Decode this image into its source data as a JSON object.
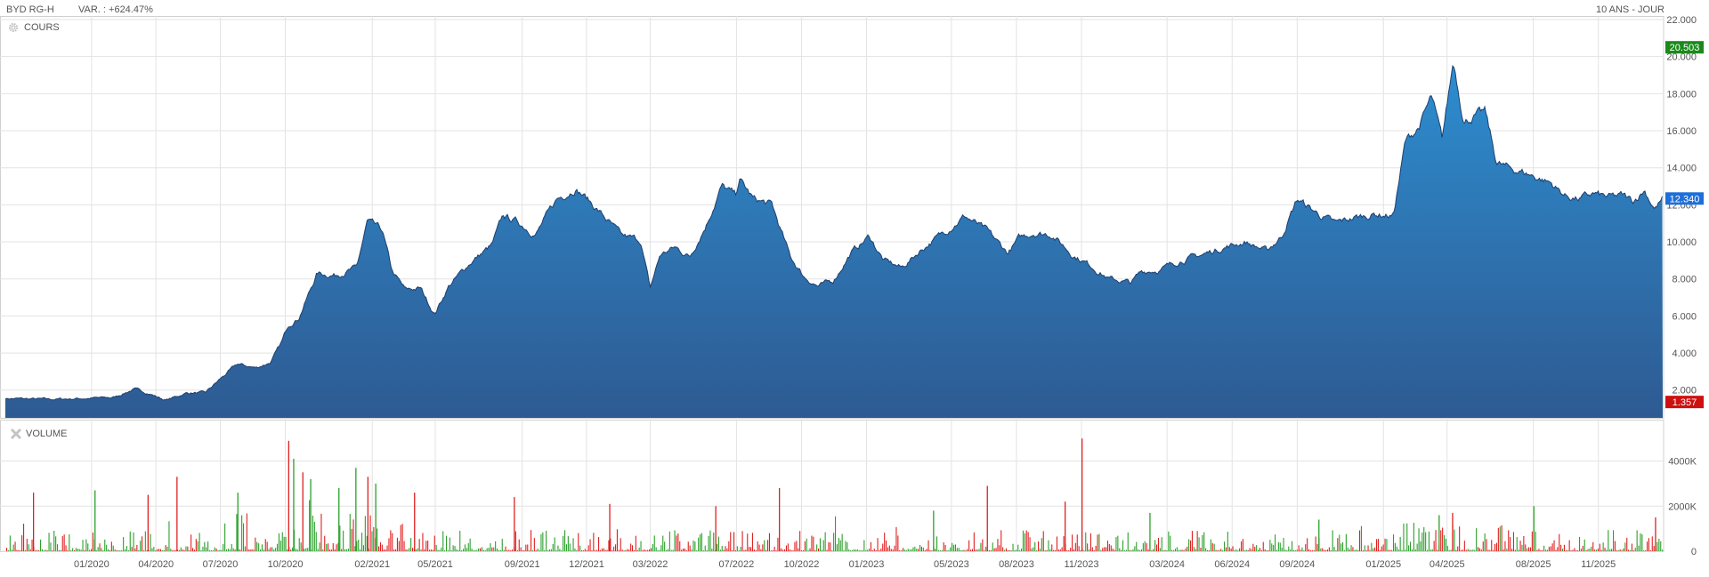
{
  "header": {
    "ticker": "BYD RG-H",
    "variation": "VAR. : +624.47%",
    "period": "10 ANS - JOUR"
  },
  "panels": {
    "price_title": "COURS",
    "price_icon": "gear-icon",
    "volume_title": "VOLUME",
    "volume_icon": "close-icon"
  },
  "colors": {
    "area_top": "#2d8dcf",
    "area_bottom": "#2e5a92",
    "line": "#1d3f6e",
    "grid": "#e3e3e3",
    "volume_up": "#2ca02c",
    "volume_down": "#e02020",
    "badge_high": "#1a8a1a",
    "badge_last": "#1e6fd9",
    "badge_low": "#cc1111"
  },
  "chart_data": [
    {
      "type": "area",
      "title": "COURS",
      "x_tick_labels": [
        "01/2020",
        "04/2020",
        "07/2020",
        "10/2020",
        "02/2021",
        "05/2021",
        "09/2021",
        "12/2021",
        "03/2022",
        "07/2022",
        "10/2022",
        "01/2023",
        "05/2023",
        "08/2023",
        "11/2023",
        "03/2024",
        "06/2024",
        "09/2024",
        "01/2025",
        "04/2025",
        "08/2025",
        "11/2025"
      ],
      "y_tick_labels": [
        "2.000",
        "4.000",
        "6.000",
        "8.000",
        "10.000",
        "12.000",
        "14.000",
        "16.000",
        "18.000",
        "20.000",
        "22.000"
      ],
      "ylim": [
        0.5,
        22.0
      ],
      "xlim": [
        "2019-09-01",
        "2026-01-31"
      ],
      "grid": true,
      "badges": {
        "high": "20.503",
        "last": "12.340",
        "low": "1.357"
      },
      "series": [
        {
          "x": [
            "2019-09-01",
            "2019-11-01",
            "2019-12-20",
            "2020-02-01",
            "2020-03-01",
            "2020-03-20",
            "2020-04-15",
            "2020-05-15",
            "2020-06-10",
            "2020-07-01",
            "2020-07-25",
            "2020-08-20",
            "2020-09-10",
            "2020-09-25",
            "2020-10-05",
            "2020-10-20",
            "2020-11-15",
            "2020-12-10",
            "2021-01-10",
            "2021-01-25",
            "2021-02-15",
            "2021-03-01",
            "2021-03-20",
            "2021-04-10",
            "2021-04-30",
            "2021-05-20",
            "2021-06-20",
            "2021-07-20",
            "2021-08-05",
            "2021-08-25",
            "2021-09-20",
            "2021-10-20",
            "2021-11-15",
            "2021-11-30",
            "2021-12-20",
            "2022-01-20",
            "2022-02-15",
            "2022-03-01",
            "2022-03-15",
            "2022-04-05",
            "2022-04-26",
            "2022-05-20",
            "2022-06-10",
            "2022-06-30",
            "2022-07-05",
            "2022-07-25",
            "2022-08-20",
            "2022-09-15",
            "2022-10-05",
            "2022-10-25",
            "2022-11-15",
            "2022-12-10",
            "2023-01-05",
            "2023-01-25",
            "2023-02-20",
            "2023-03-20",
            "2023-04-20",
            "2023-05-20",
            "2023-06-20",
            "2023-07-20",
            "2023-08-05",
            "2023-08-25",
            "2023-09-20",
            "2023-10-20",
            "2023-11-15",
            "2023-12-10",
            "2024-01-10",
            "2024-01-25",
            "2024-02-20",
            "2024-03-20",
            "2024-04-20",
            "2024-05-20",
            "2024-06-20",
            "2024-07-20",
            "2024-08-10",
            "2024-09-01",
            "2024-09-20",
            "2024-10-05",
            "2024-10-25",
            "2024-11-20",
            "2024-12-20",
            "2025-01-15",
            "2025-02-01",
            "2025-02-20",
            "2025-03-10",
            "2025-03-25",
            "2025-04-10",
            "2025-04-25",
            "2025-05-10",
            "2025-05-25",
            "2025-06-10",
            "2025-06-25",
            "2025-07-15",
            "2025-08-05",
            "2025-08-25",
            "2025-09-15",
            "2025-10-05",
            "2025-10-25",
            "2025-11-15",
            "2025-12-05",
            "2025-12-20",
            "2026-01-05",
            "2026-01-20",
            "2026-01-31"
          ],
          "y": [
            1.55,
            1.5,
            1.55,
            1.6,
            2.05,
            1.85,
            1.45,
            1.85,
            1.85,
            2.6,
            3.4,
            3.2,
            3.5,
            4.5,
            5.5,
            5.9,
            8.3,
            8.2,
            8.6,
            11.1,
            10.6,
            8.4,
            7.4,
            7.5,
            6.1,
            7.6,
            8.9,
            9.8,
            11.4,
            11.1,
            10.4,
            12.3,
            12.9,
            12.4,
            11.6,
            10.3,
            10.1,
            7.5,
            9.3,
            9.7,
            9.2,
            11.0,
            13.0,
            12.5,
            13.4,
            12.3,
            12.0,
            9.2,
            8.1,
            7.6,
            7.9,
            9.4,
            10.3,
            9.0,
            8.6,
            9.6,
            10.5,
            11.4,
            10.6,
            9.4,
            10.2,
            10.5,
            10.4,
            9.3,
            8.7,
            8.0,
            7.8,
            8.4,
            8.5,
            9.0,
            9.3,
            9.7,
            10.0,
            9.5,
            10.3,
            12.3,
            11.8,
            11.4,
            11.0,
            11.3,
            11.5,
            11.4,
            15.4,
            16.2,
            17.8,
            15.5,
            19.8,
            16.5,
            16.8,
            17.0,
            14.3,
            14.0,
            13.8,
            13.5,
            13.2,
            12.5,
            12.3,
            12.6,
            12.4,
            12.5,
            12.2,
            12.8,
            11.8,
            12.34
          ]
        }
      ]
    },
    {
      "type": "bar",
      "title": "VOLUME",
      "y_tick_labels": [
        "0",
        "2000K",
        "4000K"
      ],
      "ylim": [
        0,
        5600
      ],
      "y_unit": "K",
      "grid": true,
      "spikes": [
        {
          "x": "2019-10-10",
          "y": 2600,
          "up": false
        },
        {
          "x": "2020-01-05",
          "y": 2700,
          "up": true
        },
        {
          "x": "2020-03-20",
          "y": 2500,
          "up": false
        },
        {
          "x": "2020-04-30",
          "y": 3300,
          "up": false
        },
        {
          "x": "2020-07-25",
          "y": 2600,
          "up": true
        },
        {
          "x": "2020-10-05",
          "y": 4900,
          "up": false
        },
        {
          "x": "2020-10-12",
          "y": 4100,
          "up": true
        },
        {
          "x": "2020-10-25",
          "y": 3500,
          "up": false
        },
        {
          "x": "2020-11-05",
          "y": 3200,
          "up": true
        },
        {
          "x": "2020-12-15",
          "y": 2800,
          "up": true
        },
        {
          "x": "2021-01-08",
          "y": 3700,
          "up": true
        },
        {
          "x": "2021-01-25",
          "y": 3300,
          "up": false
        },
        {
          "x": "2021-02-05",
          "y": 3000,
          "up": true
        },
        {
          "x": "2021-04-01",
          "y": 2600,
          "up": false
        },
        {
          "x": "2021-08-20",
          "y": 2400,
          "up": false
        },
        {
          "x": "2022-01-02",
          "y": 2100,
          "up": false
        },
        {
          "x": "2022-06-01",
          "y": 2000,
          "up": false
        },
        {
          "x": "2022-08-30",
          "y": 2800,
          "up": false
        },
        {
          "x": "2023-04-05",
          "y": 1800,
          "up": true
        },
        {
          "x": "2023-06-20",
          "y": 2900,
          "up": false
        },
        {
          "x": "2023-10-08",
          "y": 2200,
          "up": false
        },
        {
          "x": "2023-11-01",
          "y": 5000,
          "up": false
        },
        {
          "x": "2024-02-05",
          "y": 1700,
          "up": true
        },
        {
          "x": "2024-10-01",
          "y": 1400,
          "up": true
        },
        {
          "x": "2025-03-20",
          "y": 1600,
          "up": true
        },
        {
          "x": "2025-04-08",
          "y": 1700,
          "up": false
        },
        {
          "x": "2025-08-01",
          "y": 2000,
          "up": true
        },
        {
          "x": "2026-01-20",
          "y": 1500,
          "up": false
        }
      ]
    }
  ]
}
